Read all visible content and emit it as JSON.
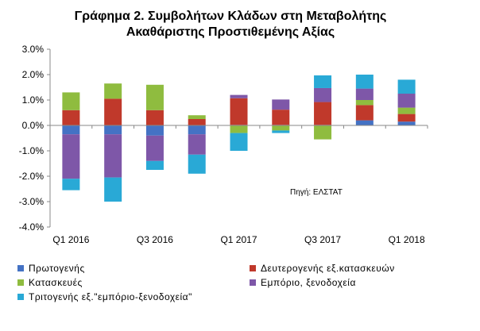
{
  "title": {
    "line1": "Γράφημα 2. Συμβολήτων Κλάδων στη Μεταβολήτης",
    "line2": "Ακαθάριστης Προστιθεμένης Αξίας"
  },
  "source": "Πηγή: ΕΛΣΤΑΤ",
  "chart_data": {
    "type": "bar",
    "stacked": true,
    "categories": [
      "Q1 2016",
      "Q2 2016",
      "Q3 2016",
      "Q4 2016",
      "Q1 2017",
      "Q2 2017",
      "Q3 2017",
      "Q4 2017",
      "Q1 2018"
    ],
    "x_tick_labels": [
      "Q1 2016",
      "Q3 2016",
      "Q1 2017",
      "Q3 2017",
      "Q1 2018"
    ],
    "y_tick_labels": [
      "3.0%",
      "2.0%",
      "1.0%",
      "0.0%",
      "-1.0%",
      "-2.0%",
      "-3.0%",
      "-4.0%"
    ],
    "ylim": [
      -4,
      3
    ],
    "y_unit": "%",
    "grid": false,
    "legend_position": "bottom",
    "series": [
      {
        "name": "Πρωτογενής",
        "color": "#4472c4",
        "values": [
          -0.35,
          -0.35,
          -0.4,
          -0.35,
          0.02,
          0.02,
          0.02,
          0.2,
          0.15
        ]
      },
      {
        "name": "Δευτερογενής εξ.κατασκευών",
        "color": "#c0392b",
        "values": [
          0.6,
          1.05,
          0.6,
          0.25,
          1.05,
          0.6,
          0.9,
          0.6,
          0.3
        ]
      },
      {
        "name": "Κατασκευές",
        "color": "#8fbc3f",
        "values": [
          0.7,
          0.6,
          1.0,
          0.15,
          -0.3,
          -0.2,
          -0.55,
          0.2,
          0.25
        ]
      },
      {
        "name": "Εμπόριο, ξενοδοχεία",
        "color": "#7e57a8",
        "values": [
          -1.75,
          -1.7,
          -1.0,
          -0.8,
          0.13,
          0.4,
          0.55,
          0.45,
          0.55
        ]
      },
      {
        "name": "Τριτογενής εξ.\"εμπόριο-ξενοδοχεία\"",
        "color": "#29a9d6",
        "values": [
          -0.45,
          -0.95,
          -0.35,
          -0.75,
          -0.7,
          -0.1,
          0.5,
          0.55,
          0.55
        ]
      }
    ]
  }
}
